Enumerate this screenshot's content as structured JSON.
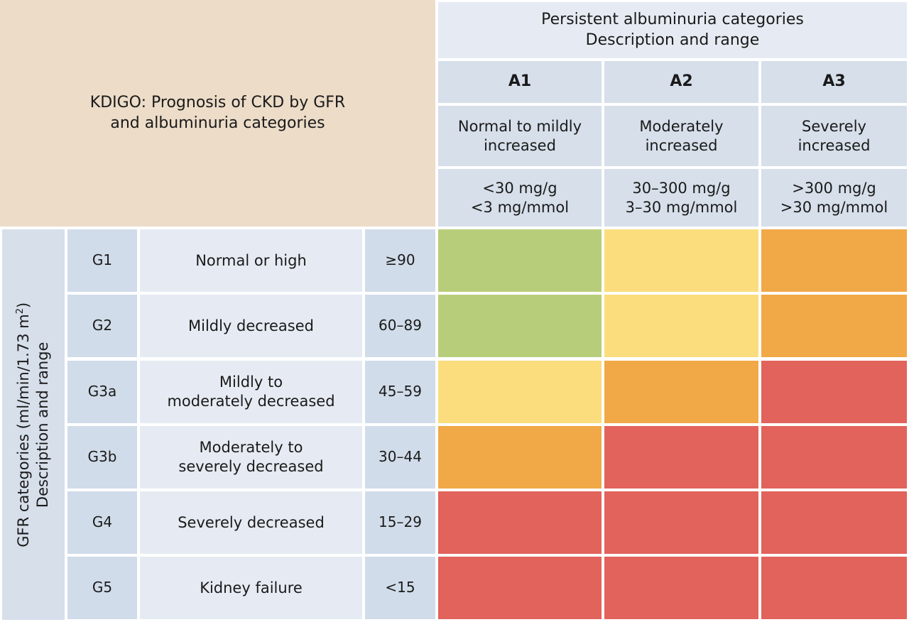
{
  "title": {
    "line1": "KDIGO: Prognosis of CKD by GFR",
    "line2": "and albuminuria categories"
  },
  "albuminuria_header": {
    "line1": "Persistent albuminuria categories",
    "line2": "Description and range"
  },
  "albuminuria_categories": [
    {
      "code": "A1",
      "desc1": "Normal to mildly",
      "desc2": "increased",
      "range1": "<30 mg/g",
      "range2": "<3 mg/mmol"
    },
    {
      "code": "A2",
      "desc1": "Moderately",
      "desc2": "increased",
      "range1": "30–300 mg/g",
      "range2": "3–30 mg/mmol"
    },
    {
      "code": "A3",
      "desc1": "Severely",
      "desc2": "increased",
      "range1": ">300 mg/g",
      "range2": ">30 mg/mmol"
    }
  ],
  "gfr_header": {
    "line1": "GFR categories (ml/min/1.73 m",
    "superscript": "2",
    "line1_end": ")",
    "line2": "Description and range"
  },
  "gfr_categories": [
    {
      "code": "G1",
      "desc1": "Normal or high",
      "desc2": "",
      "range": "≥90"
    },
    {
      "code": "G2",
      "desc1": "Mildly decreased",
      "desc2": "",
      "range": "60–89"
    },
    {
      "code": "G3a",
      "desc1": "Mildly to",
      "desc2": "moderately decreased",
      "range": "45–59"
    },
    {
      "code": "G3b",
      "desc1": "Moderately to",
      "desc2": "severely decreased",
      "range": "30–44"
    },
    {
      "code": "G4",
      "desc1": "Severely decreased",
      "desc2": "",
      "range": "15–29"
    },
    {
      "code": "G5",
      "desc1": "Kidney failure",
      "desc2": "",
      "range": "<15"
    }
  ],
  "risk_colors": {
    "green": "#b8cd7a",
    "yellow": "#fbdd7e",
    "orange": "#f0a946",
    "red": "#e2625c"
  },
  "risk_matrix": [
    [
      "green",
      "yellow",
      "orange"
    ],
    [
      "green",
      "yellow",
      "orange"
    ],
    [
      "yellow",
      "orange",
      "red"
    ],
    [
      "orange",
      "red",
      "red"
    ],
    [
      "red",
      "red",
      "red"
    ],
    [
      "red",
      "red",
      "red"
    ]
  ]
}
